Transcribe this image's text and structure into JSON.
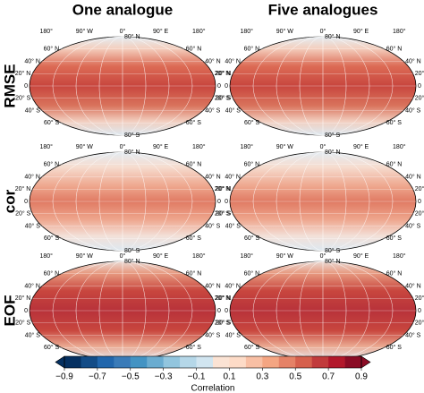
{
  "columns": [
    "One analogue",
    "Five analogues"
  ],
  "rows": [
    "RMSE",
    "cor",
    "EOF"
  ],
  "lon_labels": [
    "180°",
    "90° W",
    "0°",
    "90° E",
    "180°"
  ],
  "lat_labels": [
    "80° N",
    "60° N",
    "40° N",
    "20° N",
    "0",
    "20° S",
    "40° S",
    "60° S",
    "80° S"
  ],
  "colorbar": {
    "label": "Correlation",
    "lim": [
      -0.9,
      0.9
    ],
    "ticks": [
      {
        "value": -0.9,
        "label": "−0.9"
      },
      {
        "value": -0.7,
        "label": "−0.7"
      },
      {
        "value": -0.5,
        "label": "−0.5"
      },
      {
        "value": -0.3,
        "label": "−0.3"
      },
      {
        "value": -0.1,
        "label": "−0.1"
      },
      0.1,
      0.3,
      0.5,
      0.7,
      0.9
    ],
    "colors": [
      "#053061",
      "#134c87",
      "#2166ac",
      "#3a7bb8",
      "#4393c3",
      "#6aacd0",
      "#92c5de",
      "#b5d7e8",
      "#d1e5f0",
      "#fbe3d4",
      "#fddbc7",
      "#f8bfa4",
      "#f4a582",
      "#e58267",
      "#d6604d",
      "#c13b3c",
      "#b2182b",
      "#8b0c25"
    ],
    "extend": "both"
  }
}
